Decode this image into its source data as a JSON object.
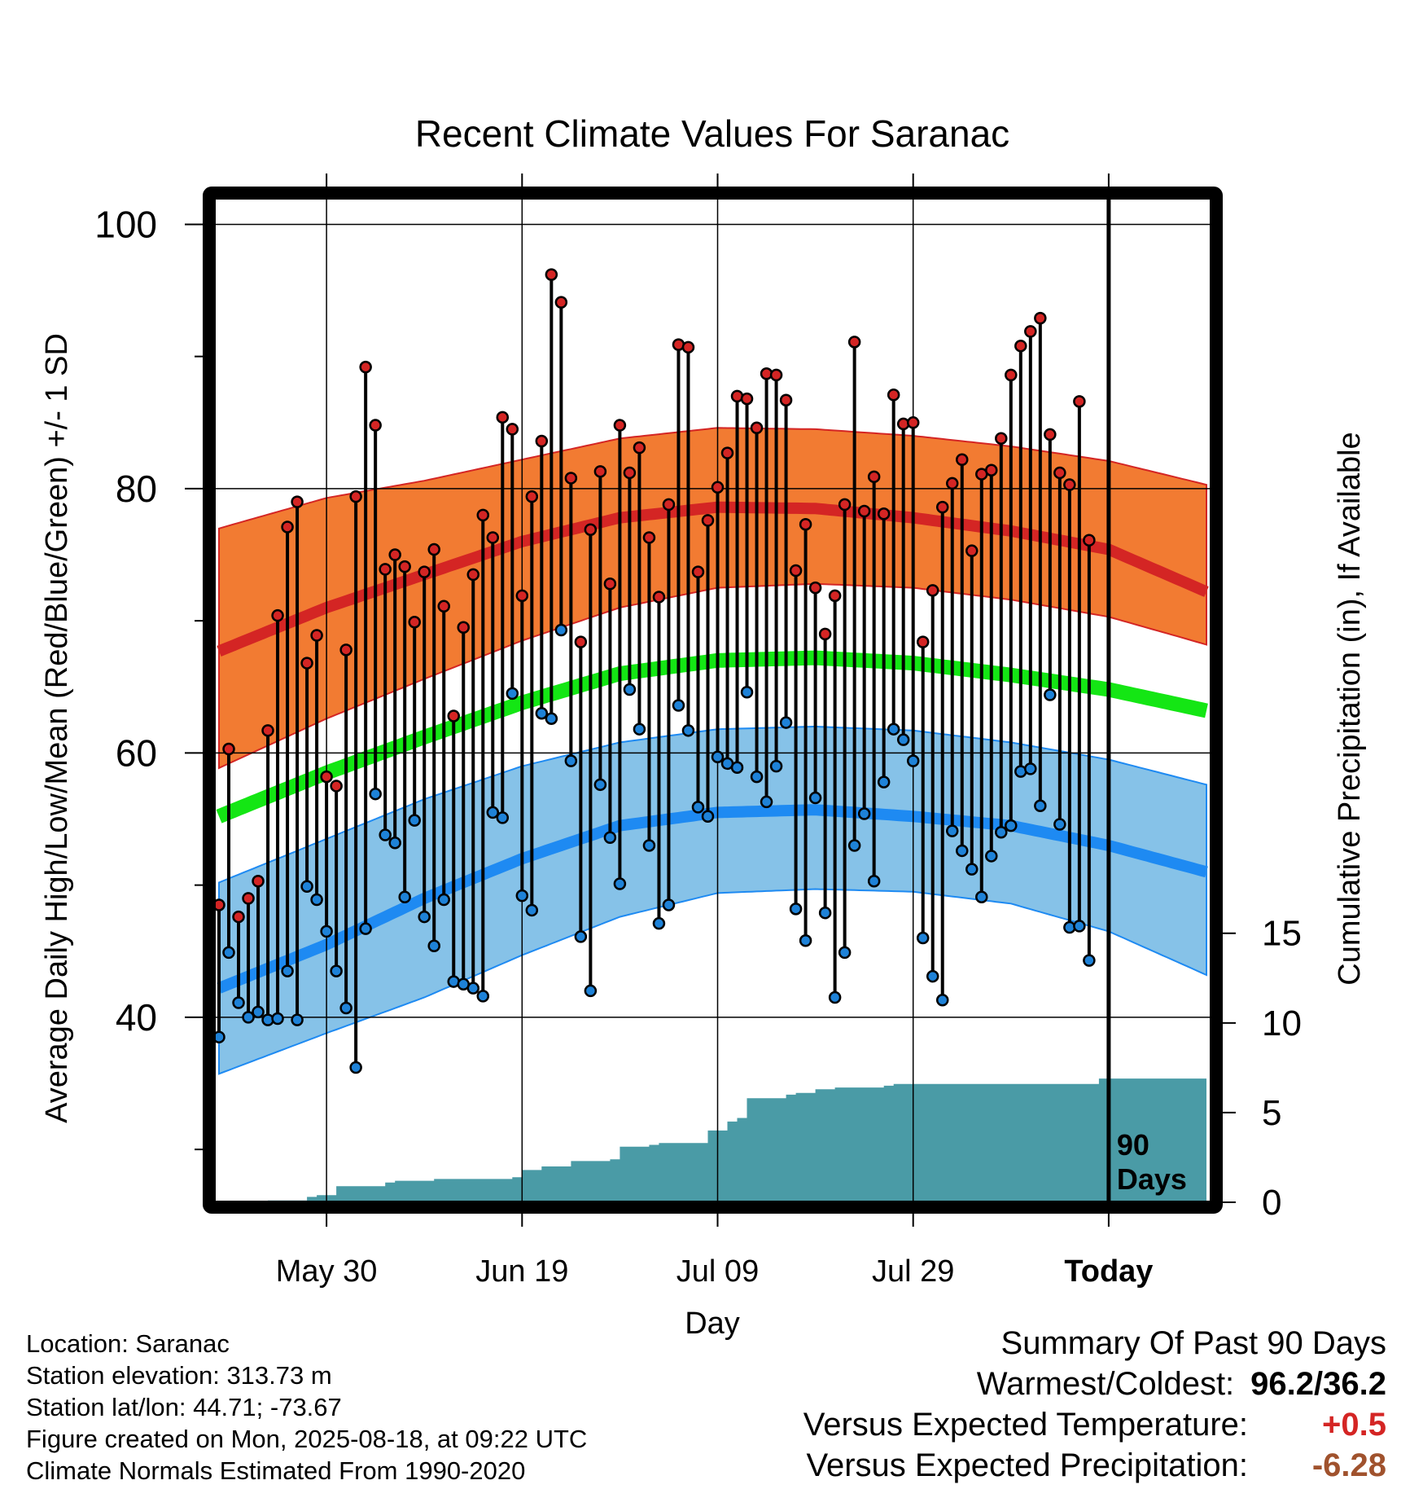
{
  "colors": {
    "high_band": "#f27b32",
    "high_mean": "#d42524",
    "low_band": "#86c2e8",
    "low_mean": "#1e8af2",
    "mean_line": "#14e614",
    "precip_fill": "#4a9ba6",
    "high_dot": "#d42524",
    "low_dot": "#1e82d8",
    "temp_anomaly": "#d42524",
    "precip_anomaly": "#a0522d"
  },
  "footer": {
    "location": "Location: Saranac",
    "elevation": "Station elevation: 313.73 m",
    "latlon": "Station lat/lon: 44.71; -73.67",
    "created": "Figure created on Mon, 2025-08-18, at 09:22 UTC",
    "normals": "Climate Normals Estimated From 1990-2020"
  },
  "summary": {
    "heading": "Summary Of Past 90 Days",
    "warm_cold_label": "Warmest/Coldest:",
    "warm_cold_value": "96.2/36.2",
    "temp_label": "Versus Expected Temperature:",
    "temp_value": "+0.5",
    "precip_label": "Versus Expected Precipitation:",
    "precip_value": "-6.28"
  },
  "chart_data": {
    "type": "line",
    "title": "Recent Climate Values For Saranac",
    "xlabel": "Day",
    "ylabel": "Average Daily High/Low/Mean (Red/Blue/Green) +/- 1 SD",
    "y2label": "Cumulative Precipitation (in), If Available",
    "xlim": [
      -11,
      90
    ],
    "ylim": [
      26,
      102
    ],
    "y2lim": [
      0,
      56
    ],
    "x_ticks": [
      {
        "x": 0,
        "label": "May 30"
      },
      {
        "x": 20,
        "label": "Jun 19"
      },
      {
        "x": 40,
        "label": "Jul 09"
      },
      {
        "x": 60,
        "label": "Jul 29"
      },
      {
        "x": 80,
        "label": "Today"
      }
    ],
    "y_ticks": [
      40,
      60,
      80,
      100
    ],
    "y2_ticks": [
      0,
      5,
      10,
      15
    ],
    "marker_x": 80,
    "marker_label": [
      "90",
      "Days"
    ],
    "normals": {
      "x": [
        -10,
        0,
        10,
        20,
        30,
        40,
        50,
        60,
        70,
        80,
        90
      ],
      "high_mean": [
        68,
        71,
        73.5,
        76,
        77.8,
        78.6,
        78.5,
        77.8,
        76.8,
        75.4,
        72.2
      ],
      "high_upper": [
        77.2,
        79.3,
        80.6,
        82.2,
        83.8,
        84.6,
        84.5,
        84.0,
        83.2,
        82.1,
        80.3
      ],
      "high_lower": [
        59.2,
        62.6,
        65.6,
        68.5,
        71.0,
        72.5,
        72.8,
        72.5,
        71.6,
        70.3,
        68.2
      ],
      "mean": [
        55.5,
        58.5,
        61.2,
        63.8,
        66.0,
        67.0,
        67.2,
        66.8,
        65.9,
        64.8,
        63.2
      ],
      "low_mean": [
        42.5,
        45.5,
        49.0,
        52.0,
        54.5,
        55.5,
        55.7,
        55.2,
        54.5,
        53.0,
        51.0
      ],
      "low_upper": [
        50.5,
        53.5,
        56.5,
        59.0,
        60.8,
        61.8,
        62.0,
        61.7,
        60.8,
        59.5,
        57.6
      ],
      "low_lower": [
        36.0,
        38.8,
        41.5,
        44.7,
        47.6,
        49.4,
        49.7,
        49.5,
        48.6,
        46.5,
        43.2
      ]
    },
    "series": [
      {
        "name": "High",
        "values": [
          48.5,
          60.3,
          47.6,
          49.0,
          50.3,
          61.7,
          70.4,
          77.1,
          79.0,
          66.8,
          68.9,
          58.2,
          57.5,
          67.8,
          79.4,
          89.2,
          84.8,
          73.9,
          75.0,
          74.1,
          69.9,
          73.7,
          75.4,
          71.1,
          62.8,
          69.5,
          73.5,
          78.0,
          76.3,
          85.4,
          84.5,
          71.9,
          79.4,
          83.6,
          96.2,
          94.1,
          80.8,
          68.4,
          76.9,
          81.3,
          72.8,
          84.8,
          81.2,
          83.1,
          76.3,
          71.8,
          78.8,
          90.9,
          90.7,
          73.7,
          77.6,
          80.1,
          82.7,
          87.0,
          86.8,
          84.6,
          88.7,
          88.6,
          86.7,
          73.8,
          77.3,
          72.5,
          69.0,
          71.9,
          78.8,
          91.1,
          78.3,
          80.9,
          78.1,
          87.1,
          84.9,
          85.0,
          68.4,
          72.3,
          78.6,
          80.4,
          82.2,
          75.3,
          81.1,
          81.4,
          83.8,
          88.6,
          90.8,
          91.9,
          92.9,
          84.1,
          81.2,
          80.3,
          86.6,
          76.1
        ]
      },
      {
        "name": "Low",
        "values": [
          38.5,
          44.9,
          41.1,
          40.0,
          40.4,
          39.8,
          39.9,
          43.5,
          39.8,
          49.9,
          48.9,
          46.5,
          43.5,
          40.7,
          36.2,
          46.7,
          56.9,
          53.8,
          53.2,
          49.1,
          54.9,
          47.6,
          45.4,
          48.9,
          42.7,
          42.5,
          42.2,
          41.6,
          55.5,
          55.1,
          64.5,
          49.2,
          48.1,
          63.0,
          62.6,
          69.3,
          59.4,
          46.1,
          42.0,
          57.6,
          53.6,
          50.1,
          64.8,
          61.8,
          53.0,
          47.1,
          48.5,
          63.6,
          61.7,
          55.9,
          55.2,
          59.7,
          59.2,
          58.9,
          64.6,
          58.2,
          56.3,
          59.0,
          62.3,
          48.2,
          45.8,
          56.6,
          47.9,
          41.5,
          44.9,
          53.0,
          55.4,
          50.3,
          57.8,
          61.8,
          61.0,
          59.4,
          46.0,
          43.1,
          41.3,
          54.1,
          52.6,
          51.2,
          49.1,
          52.2,
          54.0,
          54.5,
          58.6,
          58.8,
          56.0,
          64.4,
          54.6,
          46.8,
          46.9,
          44.3
        ]
      },
      {
        "name": "Cumulative Precipitation",
        "x": [
          -11,
          -6,
          -2,
          -1,
          0,
          1,
          6,
          7,
          10,
          11,
          19,
          20,
          22,
          23,
          25,
          29,
          30,
          32,
          33,
          34,
          39,
          40,
          41,
          42,
          43,
          47,
          48,
          50,
          52,
          57,
          58,
          76,
          79,
          80,
          90
        ],
        "values": [
          0,
          0.1,
          0.3,
          0.4,
          0.4,
          0.9,
          1.1,
          1.2,
          1.2,
          1.3,
          1.4,
          1.8,
          2.0,
          2.0,
          2.3,
          2.4,
          3.1,
          3.1,
          3.2,
          3.3,
          4.0,
          4.0,
          4.5,
          4.7,
          5.8,
          6.0,
          6.1,
          6.3,
          6.4,
          6.5,
          6.6,
          6.6,
          6.9,
          6.9,
          6.9
        ]
      }
    ]
  }
}
